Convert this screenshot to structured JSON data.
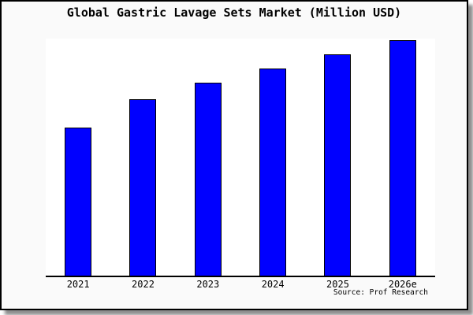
{
  "title": "Global Gastric Lavage Sets Market (Million USD)",
  "source": "Source: Prof Research",
  "colors": {
    "bar_fill": "#0000ff",
    "bar_border": "#000000",
    "plot_background": "#ffffff",
    "canvas_background": "#fafafa",
    "frame_border": "#000000",
    "text": "#000000"
  },
  "chart_data": {
    "type": "bar",
    "title": "Global Gastric Lavage Sets Market (Million USD)",
    "categories": [
      "2021",
      "2022",
      "2023",
      "2024",
      "2025",
      "2026e"
    ],
    "values": [
      63,
      75,
      82,
      88,
      94,
      100
    ],
    "xlabel": "",
    "ylabel": "",
    "ylim": [
      0,
      100
    ],
    "value_note": "No y-axis scale or data labels shown in image; values estimated from bar heights relative to 2026e = 100",
    "legend": "none",
    "grid": false,
    "annotations": [
      "Source: Prof Research"
    ]
  }
}
